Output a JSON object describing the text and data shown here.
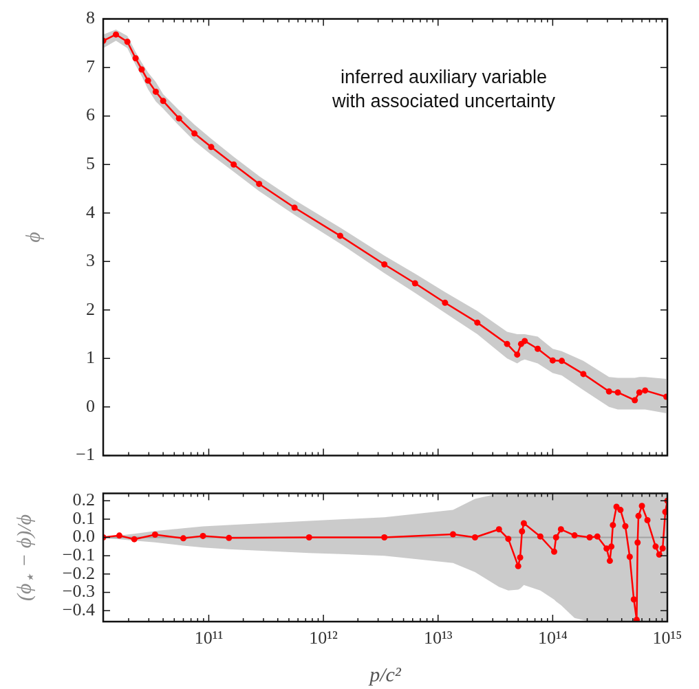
{
  "chart_data": [
    {
      "type": "line",
      "ylabel": "ϕ",
      "annotations": [
        "inferred auxiliary variable with associated uncertainty"
      ],
      "log": "x",
      "marker": "circle",
      "tick_labels": "y",
      "xlim": [
        12000000000.0,
        1000000000000000.0
      ],
      "ylim": [
        -1,
        8
      ],
      "yticks": [
        {
          "value": -1,
          "label": "−1"
        },
        0,
        1,
        2,
        3,
        4,
        5,
        6,
        7,
        8
      ],
      "xticks": [
        {
          "value": 20000000000.0,
          "label": null
        },
        {
          "value": 30000000000.0,
          "label": null
        },
        {
          "value": 40000000000.0,
          "label": null
        },
        {
          "value": 50000000000.0,
          "label": null
        },
        {
          "value": 60000000000.0,
          "label": null
        },
        {
          "value": 70000000000.0,
          "label": null
        },
        {
          "value": 80000000000.0,
          "label": null
        },
        {
          "value": 90000000000.0,
          "label": null
        },
        {
          "value": 100000000000.0,
          "label": null
        },
        {
          "value": 200000000000.0,
          "label": null
        },
        {
          "value": 300000000000.0,
          "label": null
        },
        {
          "value": 400000000000.0,
          "label": null
        },
        {
          "value": 500000000000.0,
          "label": null
        },
        {
          "value": 600000000000.0,
          "label": null
        },
        {
          "value": 700000000000.0,
          "label": null
        },
        {
          "value": 800000000000.0,
          "label": null
        },
        {
          "value": 900000000000.0,
          "label": null
        },
        {
          "value": 1000000000000.0,
          "label": null
        },
        {
          "value": 2000000000000.0,
          "label": null
        },
        {
          "value": 3000000000000.0,
          "label": null
        },
        {
          "value": 4000000000000.0,
          "label": null
        },
        {
          "value": 5000000000000.0,
          "label": null
        },
        {
          "value": 6000000000000.0,
          "label": null
        },
        {
          "value": 7000000000000.0,
          "label": null
        },
        {
          "value": 8000000000000.0,
          "label": null
        },
        {
          "value": 9000000000000.0,
          "label": null
        },
        {
          "value": 10000000000000.0,
          "label": null
        },
        {
          "value": 20000000000000.0,
          "label": null
        },
        {
          "value": 30000000000000.0,
          "label": null
        },
        {
          "value": 40000000000000.0,
          "label": null
        },
        {
          "value": 50000000000000.0,
          "label": null
        },
        {
          "value": 60000000000000.0,
          "label": null
        },
        {
          "value": 70000000000000.0,
          "label": null
        },
        {
          "value": 80000000000000.0,
          "label": null
        },
        {
          "value": 90000000000000.0,
          "label": null
        },
        {
          "value": 100000000000000.0,
          "label": null
        },
        {
          "value": 200000000000000.0,
          "label": null
        },
        {
          "value": 300000000000000.0,
          "label": null
        },
        {
          "value": 400000000000000.0,
          "label": null
        },
        {
          "value": 500000000000000.0,
          "label": null
        },
        {
          "value": 600000000000000.0,
          "label": null
        },
        {
          "value": 700000000000000.0,
          "label": null
        },
        {
          "value": 800000000000000.0,
          "label": null
        },
        {
          "value": 900000000000000.0,
          "label": null
        },
        {
          "value": 1000000000000000.0,
          "label": null
        }
      ],
      "series": [
        {
          "color": "#ff0000",
          "x": [
            12000000000.0,
            15500000000.0,
            19500000000.0,
            23000000000.0,
            26000000000.0,
            29500000000.0,
            34500000000.0,
            40000000000.0,
            55000000000.0,
            75000000000.0,
            105000000000.0,
            165000000000.0,
            275000000000.0,
            560000000000.0,
            1400000000000.0,
            3400000000000.0,
            6300000000000.0,
            11500000000000.0,
            22000000000000.0,
            40000000000000.0,
            49000000000000.0,
            53000000000000.0,
            57000000000000.0,
            74000000000000.0,
            100000000000000.0,
            120000000000000.0,
            185000000000000.0,
            310000000000000.0,
            370000000000000.0,
            520000000000000.0,
            570000000000000.0,
            640000000000000.0,
            980000000000000.0
          ],
          "values": [
            7.55,
            7.68,
            7.53,
            7.19,
            6.96,
            6.73,
            6.5,
            6.31,
            5.95,
            5.64,
            5.36,
            5.0,
            4.6,
            4.11,
            3.53,
            2.94,
            2.55,
            2.15,
            1.74,
            1.3,
            1.08,
            1.3,
            1.36,
            1.2,
            0.96,
            0.95,
            0.68,
            0.32,
            0.3,
            0.14,
            0.3,
            0.34,
            0.21
          ],
          "lower": [
            7.4,
            7.55,
            7.4,
            7.05,
            6.82,
            6.55,
            6.3,
            6.15,
            5.8,
            5.48,
            5.2,
            4.85,
            4.45,
            3.96,
            3.37,
            2.76,
            2.35,
            1.94,
            1.5,
            1.0,
            0.9,
            0.95,
            0.98,
            0.9,
            0.7,
            0.65,
            0.35,
            0.0,
            -0.05,
            -0.05,
            -0.05,
            -0.05,
            -0.13
          ],
          "upper": [
            7.68,
            7.78,
            7.65,
            7.32,
            7.1,
            6.9,
            6.7,
            6.45,
            6.12,
            5.82,
            5.53,
            5.16,
            4.76,
            4.27,
            3.7,
            3.12,
            2.75,
            2.37,
            1.98,
            1.55,
            1.5,
            1.5,
            1.5,
            1.45,
            1.2,
            1.15,
            0.95,
            0.62,
            0.6,
            0.6,
            0.62,
            0.62,
            0.58
          ]
        }
      ]
    },
    {
      "type": "line",
      "xlabel": "p/c²",
      "ylabel": "(ϕ$_{⋆}$ − ϕ)/ϕ",
      "log": "x",
      "marker": "circle",
      "xlim": [
        12000000000.0,
        1000000000000000.0
      ],
      "ylim": [
        -0.46,
        0.24
      ],
      "yticks": [
        {
          "value": -0.4,
          "label": "−0.4"
        },
        {
          "value": -0.3,
          "label": "−0.3"
        },
        {
          "value": -0.2,
          "label": "−0.2"
        },
        {
          "value": -0.1,
          "label": "−0.1"
        },
        {
          "value": 0,
          "label": "0.0"
        },
        0.1,
        0.2
      ],
      "xticks": [
        {
          "value": 20000000000.0,
          "label": null
        },
        {
          "value": 30000000000.0,
          "label": null
        },
        {
          "value": 40000000000.0,
          "label": null
        },
        {
          "value": 50000000000.0,
          "label": null
        },
        {
          "value": 60000000000.0,
          "label": null
        },
        {
          "value": 70000000000.0,
          "label": null
        },
        {
          "value": 80000000000.0,
          "label": null
        },
        {
          "value": 90000000000.0,
          "label": null
        },
        {
          "value": 100000000000.0,
          "label": "10¹¹"
        },
        {
          "value": 200000000000.0,
          "label": null
        },
        {
          "value": 300000000000.0,
          "label": null
        },
        {
          "value": 400000000000.0,
          "label": null
        },
        {
          "value": 500000000000.0,
          "label": null
        },
        {
          "value": 600000000000.0,
          "label": null
        },
        {
          "value": 700000000000.0,
          "label": null
        },
        {
          "value": 800000000000.0,
          "label": null
        },
        {
          "value": 900000000000.0,
          "label": null
        },
        {
          "value": 1000000000000.0,
          "label": "10¹²"
        },
        {
          "value": 2000000000000.0,
          "label": null
        },
        {
          "value": 3000000000000.0,
          "label": null
        },
        {
          "value": 4000000000000.0,
          "label": null
        },
        {
          "value": 5000000000000.0,
          "label": null
        },
        {
          "value": 6000000000000.0,
          "label": null
        },
        {
          "value": 7000000000000.0,
          "label": null
        },
        {
          "value": 8000000000000.0,
          "label": null
        },
        {
          "value": 9000000000000.0,
          "label": null
        },
        {
          "value": 10000000000000.0,
          "label": "10¹³"
        },
        {
          "value": 20000000000000.0,
          "label": null
        },
        {
          "value": 30000000000000.0,
          "label": null
        },
        {
          "value": 40000000000000.0,
          "label": null
        },
        {
          "value": 50000000000000.0,
          "label": null
        },
        {
          "value": 60000000000000.0,
          "label": null
        },
        {
          "value": 70000000000000.0,
          "label": null
        },
        {
          "value": 80000000000000.0,
          "label": null
        },
        {
          "value": 90000000000000.0,
          "label": null
        },
        {
          "value": 100000000000000.0,
          "label": "10¹⁴"
        },
        {
          "value": 200000000000000.0,
          "label": null
        },
        {
          "value": 300000000000000.0,
          "label": null
        },
        {
          "value": 400000000000000.0,
          "label": null
        },
        {
          "value": 500000000000000.0,
          "label": null
        },
        {
          "value": 600000000000000.0,
          "label": null
        },
        {
          "value": 700000000000000.0,
          "label": null
        },
        {
          "value": 800000000000000.0,
          "label": null
        },
        {
          "value": 900000000000000.0,
          "label": null
        },
        {
          "value": 1000000000000000.0,
          "label": "10¹⁵"
        }
      ],
      "ref_lines": [
        {
          "axis": "y",
          "value": 0,
          "color": "#8c8c8c"
        }
      ],
      "series": [
        {
          "color": "#ff0000",
          "x": [
            12000000000.0,
            16600000000.0,
            22400000000.0,
            34000000000.0,
            60000000000.0,
            89000000000.0,
            150000000000.0,
            750000000000.0,
            3400000000000.0,
            13500000000000.0,
            21000000000000.0,
            34000000000000.0,
            41000000000000.0,
            50000000000000.0,
            52000000000000.0,
            54000000000000.0,
            56000000000000.0,
            78000000000000.0,
            103000000000000.0,
            107000000000000.0,
            118000000000000.0,
            155000000000000.0,
            210000000000000.0,
            245000000000000.0,
            295000000000000.0,
            315000000000000.0,
            325000000000000.0,
            335000000000000.0,
            360000000000000.0,
            390000000000000.0,
            430000000000000.0,
            470000000000000.0,
            510000000000000.0,
            540000000000000.0,
            550000000000000.0,
            560000000000000.0,
            600000000000000.0,
            670000000000000.0,
            790000000000000.0,
            850000000000000.0,
            910000000000000.0,
            960000000000000.0,
            1000000000000000.0
          ],
          "values": [
            0,
            0.01,
            -0.01,
            0.015,
            -0.005,
            0.008,
            -0.003,
            0,
            0,
            0.017,
            0,
            0.044,
            -0.008,
            -0.157,
            -0.11,
            0.033,
            0.077,
            0.005,
            -0.078,
            0,
            0.044,
            0.011,
            0,
            0.005,
            -0.061,
            -0.128,
            -0.05,
            0.067,
            0.167,
            0.15,
            0.061,
            -0.106,
            -0.339,
            -0.45,
            -0.028,
            0.117,
            0.172,
            0.094,
            -0.05,
            -0.094,
            -0.06,
            0.139,
            0.2
          ],
          "lower": [
            -0.005,
            -0.01,
            -0.018,
            -0.027,
            -0.045,
            -0.055,
            -0.065,
            -0.085,
            -0.1,
            -0.14,
            -0.19,
            -0.27,
            -0.29,
            -0.285,
            -0.28,
            -0.27,
            -0.26,
            -0.29,
            -0.34,
            -0.35,
            -0.37,
            -0.44,
            -0.46,
            -0.46,
            -0.46,
            -0.46,
            -0.46,
            -0.46,
            -0.46,
            -0.46,
            -0.46,
            -0.46,
            -0.46,
            -0.46,
            -0.46,
            -0.46,
            -0.46,
            -0.46,
            -0.46,
            -0.46,
            -0.46,
            -0.46,
            -0.46
          ],
          "upper": [
            0.005,
            0.01,
            0.02,
            0.035,
            0.05,
            0.06,
            0.068,
            0.09,
            0.11,
            0.15,
            0.21,
            0.24,
            0.24,
            0.24,
            0.24,
            0.24,
            0.24,
            0.24,
            0.24,
            0.24,
            0.24,
            0.24,
            0.24,
            0.24,
            0.24,
            0.24,
            0.24,
            0.24,
            0.24,
            0.24,
            0.24,
            0.24,
            0.24,
            0.24,
            0.24,
            0.24,
            0.24,
            0.24,
            0.24,
            0.24,
            0.24,
            0.24,
            0.24
          ]
        }
      ]
    }
  ]
}
